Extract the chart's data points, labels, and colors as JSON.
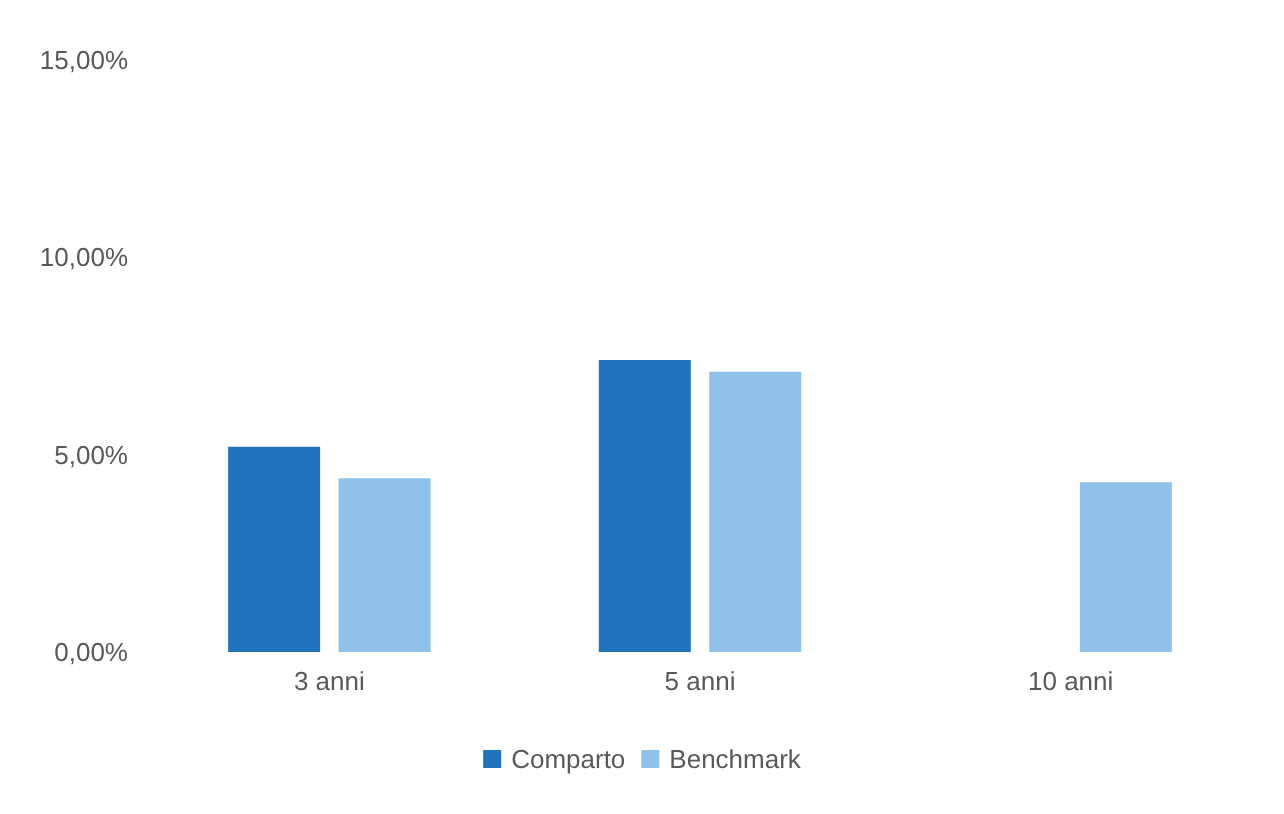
{
  "chart_data": {
    "type": "bar",
    "categories": [
      "3 anni",
      "5 anni",
      "10 anni"
    ],
    "series": [
      {
        "name": "Comparto",
        "color": "#1f74bd",
        "values": [
          5.2,
          7.4,
          null
        ]
      },
      {
        "name": "Benchmark",
        "color": "#8fc1ea",
        "values": [
          4.4,
          7.1,
          4.3
        ]
      }
    ],
    "ylim": [
      0,
      15
    ],
    "yticks": [
      {
        "value": 0,
        "label": "0,00%"
      },
      {
        "value": 5,
        "label": "5,00%"
      },
      {
        "value": 10,
        "label": "10,00%"
      },
      {
        "value": 15,
        "label": "15,00%"
      }
    ],
    "grid": false,
    "legend": "bottom"
  }
}
